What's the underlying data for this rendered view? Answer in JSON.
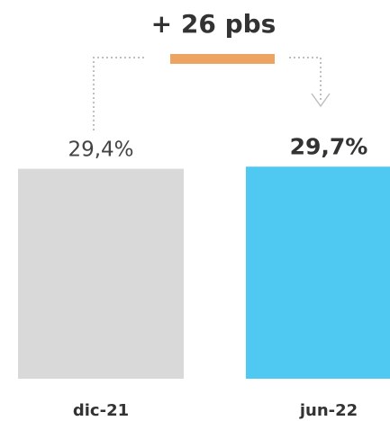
{
  "chart_data": {
    "type": "bar",
    "categories": [
      "dic-21",
      "jun-22"
    ],
    "values": [
      29.4,
      29.7
    ],
    "value_labels": [
      "29,4%",
      "29,7%"
    ],
    "ylim": [
      0,
      32
    ],
    "title": "",
    "xlabel": "",
    "ylabel": "",
    "grid": false,
    "colors": {
      "bar_prev": "#d9d9d9",
      "bar_curr": "#4fc9f2",
      "delta_bar": "#eda463",
      "connector": "#bfbfbf"
    },
    "delta_annotation": "+ 26 pbs"
  }
}
